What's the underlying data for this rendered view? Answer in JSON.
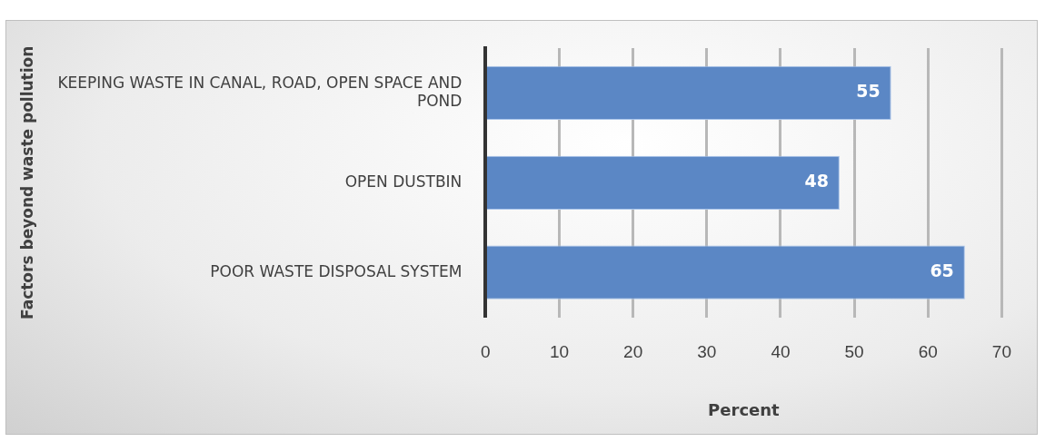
{
  "chart_data": {
    "type": "bar",
    "orientation": "horizontal",
    "categories": [
      "KEEPING WASTE IN CANAL, ROAD, OPEN SPACE AND POND",
      "OPEN DUSTBIN",
      "POOR WASTE DISPOSAL SYSTEM"
    ],
    "values": [
      55,
      48,
      65
    ],
    "color": "#5b87c5",
    "xlim": [
      0,
      70
    ],
    "xticks": [
      0,
      10,
      20,
      30,
      40,
      50,
      60,
      70
    ],
    "xlabel": "Percent",
    "ylabel": "Factors beyond waste pollution",
    "grid": "x",
    "data_labels": true
  }
}
